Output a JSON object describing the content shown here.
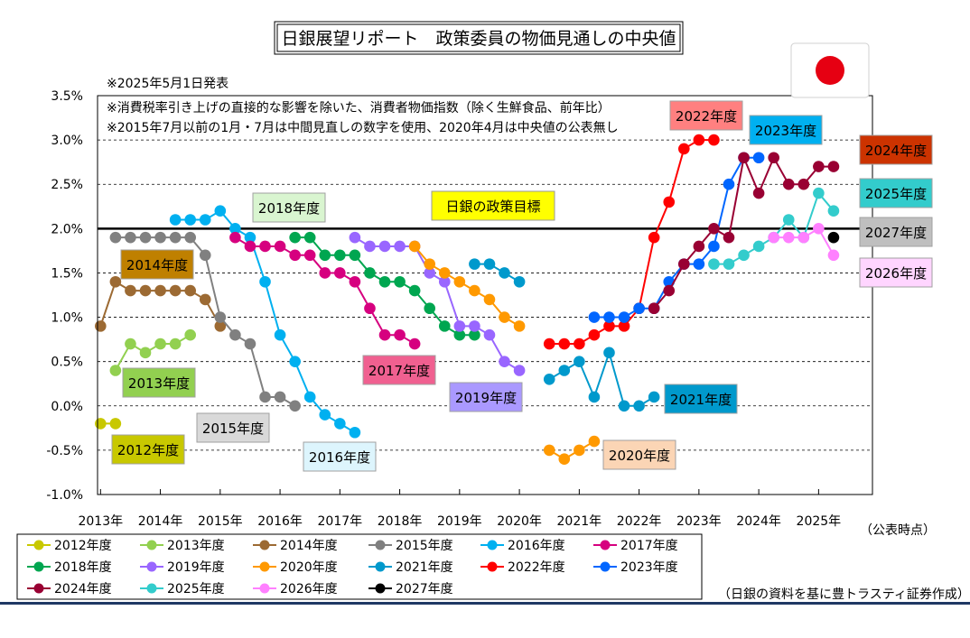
{
  "chart_data": {
    "type": "line",
    "title": "日銀展望リポート　政策委員の物価見通しの中央値",
    "notes": [
      "※2025年5月1日発表",
      "※消費税率引き上げの直接的な影響を除いた、消費者物価指数（除く生鮮食品、前年比）",
      "※2015年7月以前の1月・7月は中間見直しの数字を使用、2020年4月は中央値の公表無し"
    ],
    "xlabel": "（公表時点）",
    "source": "（日銀の資料を基に豊トラスティ証券作成）",
    "x_ticks": [
      "2013年",
      "2014年",
      "2015年",
      "2016年",
      "2017年",
      "2018年",
      "2019年",
      "2020年",
      "2021年",
      "2022年",
      "2023年",
      "2024年",
      "2025年"
    ],
    "xlim": [
      2012.95,
      2025.9
    ],
    "y_ticks": [
      "3.5%",
      "3.0%",
      "2.5%",
      "2.0%",
      "1.5%",
      "1.0%",
      "0.5%",
      "0.0%",
      "-0.5%",
      "-1.0%"
    ],
    "ylim": [
      -1.0,
      3.5
    ],
    "grid": "horizontal-dashed",
    "target": {
      "value": 2.0,
      "label": "日銀の政策目標",
      "color": "#000000"
    },
    "legend_position": "bottom",
    "series": [
      {
        "name": "2012年度",
        "color": "#c8c800",
        "x": [
          2013.0,
          2013.25
        ],
        "y": [
          -0.2,
          -0.2
        ],
        "label": "2012年度",
        "label_bg": "#c8c800"
      },
      {
        "name": "2013年度",
        "color": "#92d050",
        "x": [
          2013.25,
          2013.5,
          2013.75,
          2014.0,
          2014.25,
          2014.5
        ],
        "y": [
          0.4,
          0.7,
          0.6,
          0.7,
          0.7,
          0.8
        ],
        "label": "2013年度",
        "label_bg": "#92d050"
      },
      {
        "name": "2014年度",
        "color": "#9c6a33",
        "x": [
          2013.0,
          2013.25,
          2013.5,
          2013.75,
          2014.0,
          2014.25,
          2014.5,
          2014.75,
          2015.0
        ],
        "y": [
          0.9,
          1.4,
          1.3,
          1.3,
          1.3,
          1.3,
          1.3,
          1.2,
          0.9
        ],
        "label": "2014年度",
        "label_bg": "#bf8000"
      },
      {
        "name": "2015年度",
        "color": "#808080",
        "x": [
          2013.25,
          2013.5,
          2013.75,
          2014.0,
          2014.25,
          2014.5,
          2014.75,
          2015.0,
          2015.25,
          2015.5,
          2015.75,
          2016.0,
          2016.25
        ],
        "y": [
          1.9,
          1.9,
          1.9,
          1.9,
          1.9,
          1.9,
          1.7,
          1.0,
          0.8,
          0.7,
          0.1,
          0.1,
          0.0
        ],
        "label": "2015年度",
        "label_bg": "#d9d9d9"
      },
      {
        "name": "2016年度",
        "color": "#00b0f0",
        "x": [
          2014.25,
          2014.5,
          2014.75,
          2015.0,
          2015.25,
          2015.5,
          2015.75,
          2016.0,
          2016.25,
          2016.5,
          2016.75,
          2017.0,
          2017.25
        ],
        "y": [
          2.1,
          2.1,
          2.1,
          2.2,
          2.0,
          1.9,
          1.4,
          0.8,
          0.5,
          0.1,
          -0.1,
          -0.2,
          -0.3
        ],
        "label": "2016年度",
        "label_bg": "#ddf5fd"
      },
      {
        "name": "2017年度",
        "color": "#d6007f",
        "x": [
          2015.25,
          2015.5,
          2015.75,
          2016.0,
          2016.25,
          2016.5,
          2016.75,
          2017.0,
          2017.25,
          2017.5,
          2017.75,
          2018.0,
          2018.25
        ],
        "y": [
          1.9,
          1.8,
          1.8,
          1.8,
          1.7,
          1.7,
          1.5,
          1.5,
          1.4,
          1.1,
          0.8,
          0.8,
          0.7
        ],
        "label": "2017年度",
        "label_bg": "#f06090"
      },
      {
        "name": "2018年度",
        "color": "#00a650",
        "x": [
          2016.25,
          2016.5,
          2016.75,
          2017.0,
          2017.25,
          2017.5,
          2017.75,
          2018.0,
          2018.25,
          2018.5,
          2018.75,
          2019.0,
          2019.25
        ],
        "y": [
          1.9,
          1.9,
          1.7,
          1.7,
          1.7,
          1.5,
          1.4,
          1.4,
          1.3,
          1.1,
          0.9,
          0.8,
          0.8
        ],
        "label": "2018年度",
        "label_bg": "#d9f5d0"
      },
      {
        "name": "2019年度",
        "color": "#9966ff",
        "x": [
          2017.25,
          2017.5,
          2017.75,
          2018.0,
          2018.25,
          2018.5,
          2018.75,
          2019.0,
          2019.25,
          2019.5,
          2019.75,
          2020.0
        ],
        "y": [
          1.9,
          1.8,
          1.8,
          1.8,
          1.8,
          1.5,
          1.4,
          0.9,
          0.9,
          0.8,
          0.5,
          0.4
        ],
        "label": "2019年度",
        "label_bg": "#aa99ff"
      },
      {
        "name": "2020年度",
        "color": "#ff9900",
        "x": [
          2018.25,
          2018.5,
          2018.75,
          2019.0,
          2019.25,
          2019.5,
          2019.75,
          2020.0,
          2020.5,
          2020.75,
          2021.0,
          2021.25
        ],
        "y": [
          1.8,
          1.6,
          1.5,
          1.4,
          1.3,
          1.2,
          1.0,
          0.9,
          -0.5,
          -0.6,
          -0.5,
          -0.4
        ],
        "breaks_after": [
          7
        ],
        "label": "2020年度",
        "label_bg": "#fbd5b5"
      },
      {
        "name": "2021年度",
        "color": "#0099cc",
        "x": [
          2019.25,
          2019.5,
          2019.75,
          2020.0,
          2020.5,
          2020.75,
          2021.0,
          2021.25,
          2021.5,
          2021.75,
          2022.0,
          2022.25
        ],
        "y": [
          1.6,
          1.6,
          1.5,
          1.4,
          0.3,
          0.4,
          0.5,
          0.1,
          0.6,
          0.0,
          0.0,
          0.1
        ],
        "breaks_after": [
          3
        ],
        "label": "2021年度",
        "label_bg": "#0099cc"
      },
      {
        "name": "2022年度",
        "color": "#ff0000",
        "x": [
          2020.5,
          2020.75,
          2021.0,
          2021.25,
          2021.5,
          2021.75,
          2022.0,
          2022.25,
          2022.5,
          2022.75,
          2023.0,
          2023.25
        ],
        "y": [
          0.7,
          0.7,
          0.7,
          0.8,
          0.9,
          0.9,
          1.1,
          1.9,
          2.3,
          2.9,
          3.0,
          3.0
        ],
        "label": "2022年度",
        "label_bg": "#ff8080"
      },
      {
        "name": "2023年度",
        "color": "#0066ff",
        "x": [
          2021.25,
          2021.5,
          2021.75,
          2022.0,
          2022.25,
          2022.5,
          2022.75,
          2023.0,
          2023.25,
          2023.5,
          2023.75,
          2024.0
        ],
        "y": [
          1.0,
          1.0,
          1.0,
          1.1,
          1.1,
          1.4,
          1.6,
          1.6,
          1.8,
          2.5,
          2.8,
          2.8
        ],
        "label": "2023年度",
        "label_bg": "#00b0f0"
      },
      {
        "name": "2024年度",
        "color": "#990033",
        "x": [
          2022.25,
          2022.5,
          2022.75,
          2023.0,
          2023.25,
          2023.5,
          2023.75,
          2024.0,
          2024.25,
          2024.5,
          2024.75,
          2025.0,
          2025.25
        ],
        "y": [
          1.1,
          1.3,
          1.6,
          1.8,
          2.0,
          1.9,
          2.8,
          2.4,
          2.8,
          2.5,
          2.5,
          2.7,
          2.7
        ],
        "label": "2024年度",
        "label_bg": "#cc3300"
      },
      {
        "name": "2025年度",
        "color": "#33cccc",
        "x": [
          2023.25,
          2023.5,
          2023.75,
          2024.0,
          2024.25,
          2024.5,
          2024.75,
          2025.0,
          2025.25
        ],
        "y": [
          1.6,
          1.6,
          1.7,
          1.8,
          1.9,
          2.1,
          1.9,
          2.4,
          2.2
        ],
        "label": "2025年度",
        "label_bg": "#33cccc"
      },
      {
        "name": "2026年度",
        "color": "#ff80ff",
        "x": [
          2024.25,
          2024.5,
          2024.75,
          2025.0,
          2025.25
        ],
        "y": [
          1.9,
          1.9,
          1.9,
          2.0,
          1.7
        ],
        "label": "2026年度",
        "label_bg": "#ffd5ff"
      },
      {
        "name": "2027年度",
        "color": "#000000",
        "x": [
          2025.25
        ],
        "y": [
          1.9
        ],
        "label": "2027年度",
        "label_bg": "#bfbfbf"
      }
    ]
  }
}
